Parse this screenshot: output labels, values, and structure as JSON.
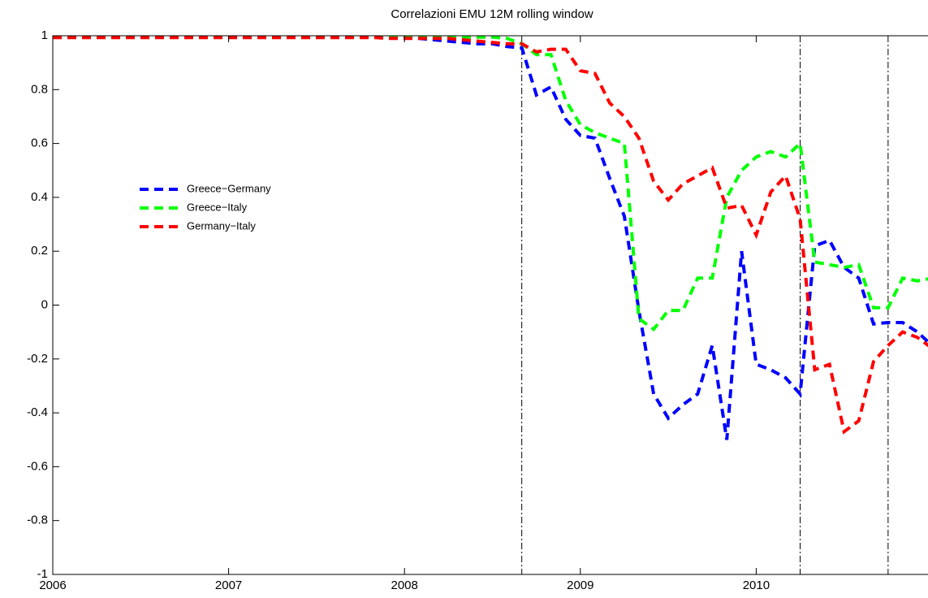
{
  "chart_data": {
    "type": "line",
    "title": "Correlazioni EMU 12M rolling window",
    "x": [
      2006,
      2006.083,
      2006.167,
      2006.25,
      2006.333,
      2006.417,
      2006.5,
      2006.583,
      2006.667,
      2006.75,
      2006.833,
      2006.917,
      2007,
      2007.083,
      2007.167,
      2007.25,
      2007.333,
      2007.417,
      2007.5,
      2007.583,
      2007.667,
      2007.75,
      2007.833,
      2007.917,
      2008,
      2008.083,
      2008.167,
      2008.25,
      2008.333,
      2008.417,
      2008.5,
      2008.583,
      2008.667,
      2008.75,
      2008.833,
      2008.917,
      2009,
      2009.083,
      2009.167,
      2009.25,
      2009.333,
      2009.417,
      2009.5,
      2009.583,
      2009.667,
      2009.75,
      2009.833,
      2009.917,
      2010,
      2010.083,
      2010.167,
      2010.25,
      2010.333,
      2010.417,
      2010.5,
      2010.583,
      2010.667,
      2010.75,
      2010.833,
      2010.917,
      2011
    ],
    "series": [
      {
        "name": "Greece−Germany",
        "color": "#0000ff",
        "values": [
          0.995,
          0.995,
          0.995,
          0.995,
          0.995,
          0.995,
          0.995,
          0.995,
          0.995,
          0.995,
          0.995,
          0.995,
          0.995,
          0.995,
          0.995,
          0.995,
          0.995,
          0.995,
          0.995,
          0.995,
          0.995,
          0.995,
          0.995,
          0.995,
          0.995,
          0.99,
          0.985,
          0.98,
          0.975,
          0.97,
          0.97,
          0.96,
          0.955,
          0.78,
          0.81,
          0.69,
          0.63,
          0.62,
          0.47,
          0.33,
          -0.02,
          -0.33,
          -0.42,
          -0.37,
          -0.33,
          -0.15,
          -0.5,
          0.2,
          -0.22,
          -0.24,
          -0.27,
          -0.33,
          0.22,
          0.24,
          0.14,
          0.1,
          -0.07,
          -0.065,
          -0.065,
          -0.1,
          -0.15
        ]
      },
      {
        "name": "Greece−Italy",
        "color": "#00ff00",
        "values": [
          0.998,
          0.998,
          0.998,
          0.998,
          0.998,
          0.998,
          0.998,
          0.998,
          0.998,
          0.998,
          0.998,
          0.998,
          0.998,
          0.998,
          0.998,
          0.998,
          0.998,
          0.998,
          0.998,
          0.998,
          0.998,
          0.998,
          0.998,
          0.998,
          0.998,
          0.998,
          0.998,
          0.995,
          0.995,
          0.995,
          0.995,
          0.99,
          0.97,
          0.93,
          0.93,
          0.76,
          0.67,
          0.64,
          0.62,
          0.6,
          -0.05,
          -0.09,
          -0.02,
          -0.02,
          0.1,
          0.1,
          0.4,
          0.5,
          0.55,
          0.57,
          0.55,
          0.6,
          0.16,
          0.15,
          0.14,
          0.15,
          -0.01,
          -0.01,
          0.1,
          0.09,
          0.1
        ]
      },
      {
        "name": "Germany−Italy",
        "color": "#ff0000",
        "values": [
          0.993,
          0.993,
          0.993,
          0.993,
          0.993,
          0.993,
          0.993,
          0.993,
          0.993,
          0.993,
          0.993,
          0.993,
          0.993,
          0.993,
          0.993,
          0.993,
          0.993,
          0.993,
          0.993,
          0.993,
          0.993,
          0.993,
          0.993,
          0.99,
          0.99,
          0.99,
          0.99,
          0.99,
          0.985,
          0.98,
          0.975,
          0.97,
          0.97,
          0.94,
          0.95,
          0.95,
          0.87,
          0.86,
          0.75,
          0.7,
          0.62,
          0.46,
          0.39,
          0.45,
          0.48,
          0.51,
          0.36,
          0.37,
          0.26,
          0.42,
          0.48,
          0.32,
          -0.24,
          -0.22,
          -0.47,
          -0.43,
          -0.21,
          -0.15,
          -0.1,
          -0.12,
          -0.16
        ]
      }
    ],
    "vlines": [
      2008.667,
      2010.25,
      2010.75
    ],
    "xlim": [
      2006,
      2011
    ],
    "xticks": [
      2006,
      2007,
      2008,
      2009,
      2010
    ],
    "ylim": [
      -1,
      1
    ],
    "yticks": [
      -1,
      -0.8,
      -0.6,
      -0.4,
      -0.2,
      0,
      0.2,
      0.4,
      0.6,
      0.8,
      1
    ],
    "grid": false
  }
}
